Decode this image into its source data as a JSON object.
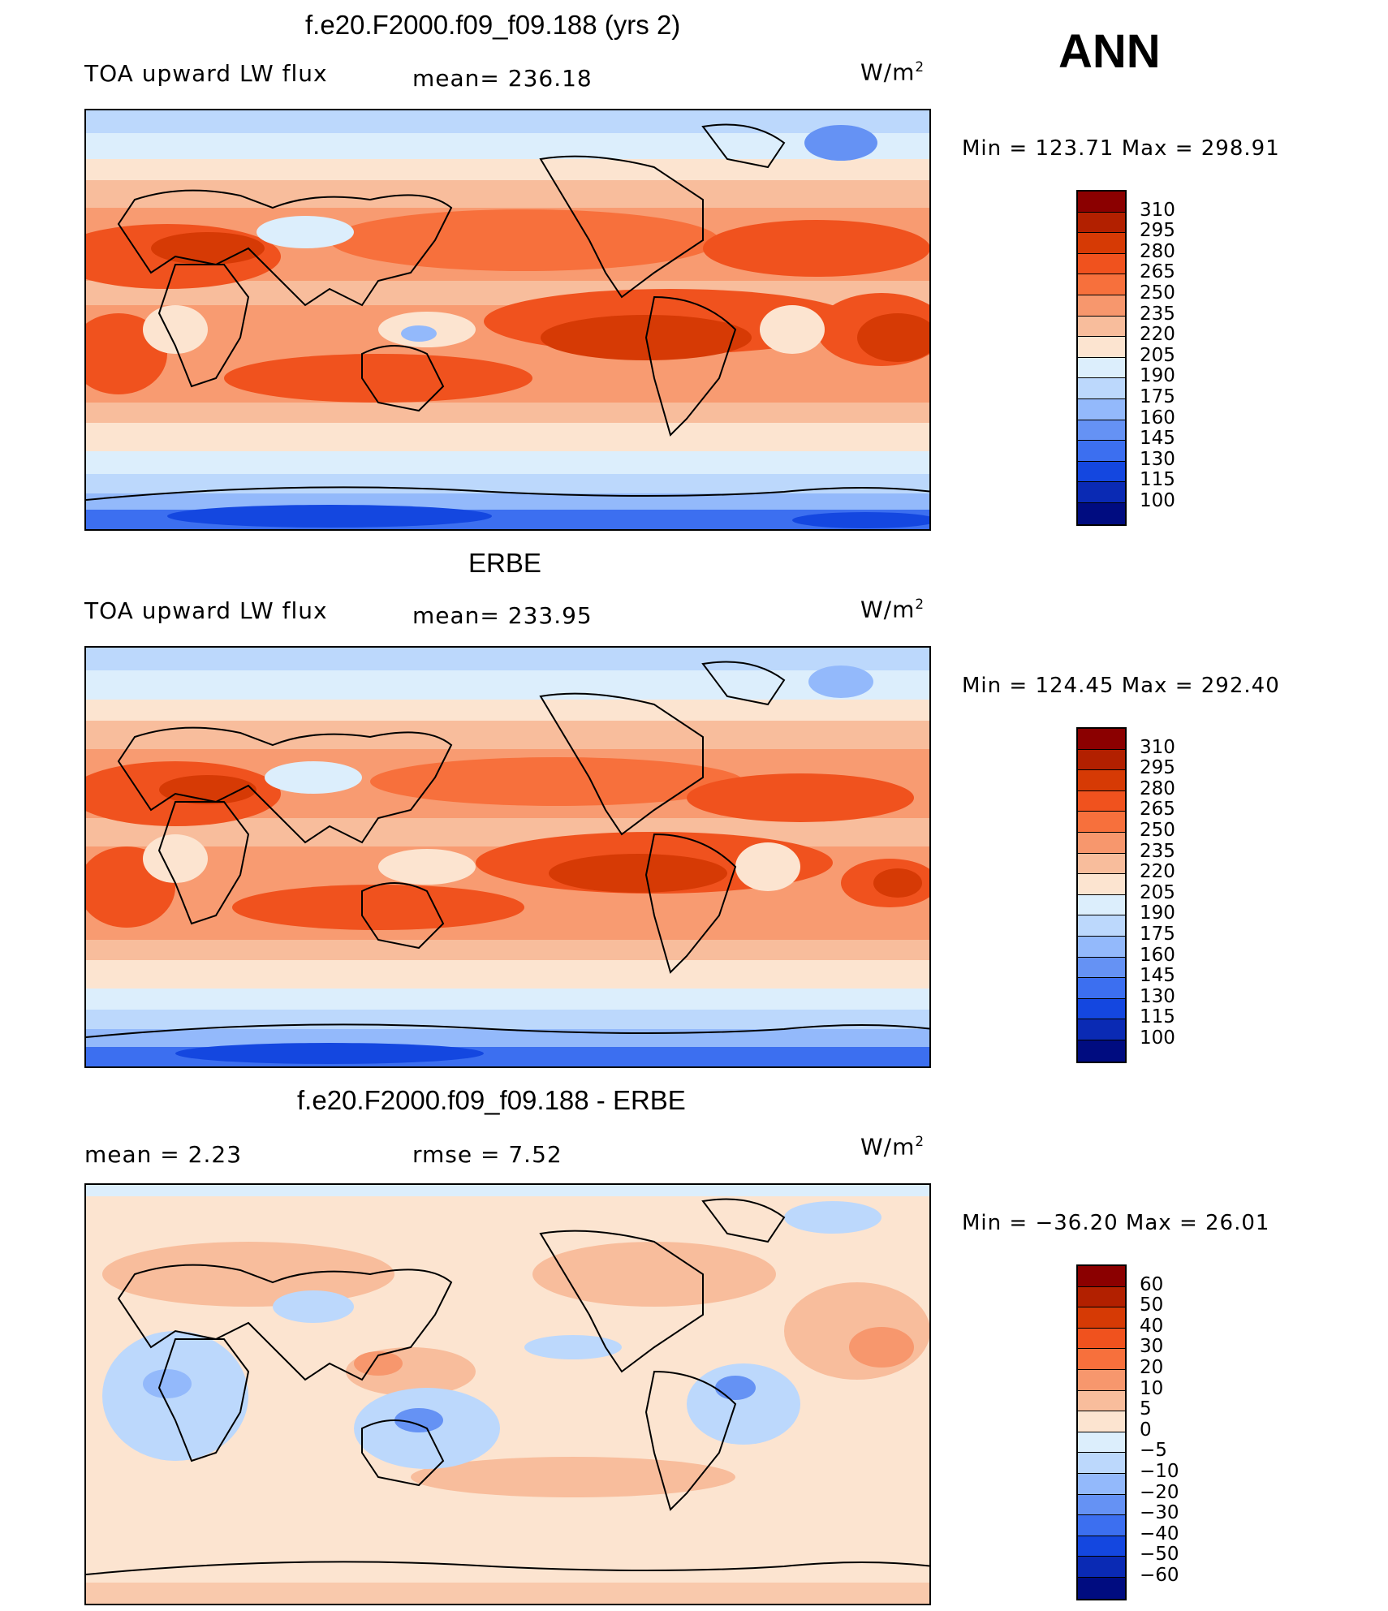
{
  "season": "ANN",
  "units_base": "W/m",
  "units_exp": "2",
  "panels": [
    {
      "id": "model",
      "title": "f.e20.F2000.f09_f09.188 (yrs 2)",
      "left_label": "TOA upward LW flux",
      "mid_label": "mean=  236.18",
      "minmax": "Min  =  123.71  Max  =  298.91",
      "scale": "abs"
    },
    {
      "id": "obs",
      "title": "ERBE",
      "left_label": "TOA upward LW flux",
      "mid_label": "mean=  233.95",
      "minmax": "Min  =  124.45  Max  =  292.40",
      "scale": "abs"
    },
    {
      "id": "diff",
      "title": "f.e20.F2000.f09_f09.188 - ERBE",
      "left_label": "mean  =      2.23",
      "mid_label": "rmse  =      7.52",
      "minmax": "Min  =  −36.20  Max  =    26.01",
      "scale": "diff"
    }
  ],
  "colorbars": {
    "abs": {
      "labels": [
        "310",
        "295",
        "280",
        "265",
        "250",
        "235",
        "220",
        "205",
        "190",
        "175",
        "160",
        "145",
        "130",
        "115",
        "100"
      ],
      "colors": [
        "#8b0000",
        "#b22000",
        "#d63a05",
        "#f0521e",
        "#f7703c",
        "#f7976d",
        "#f8bd9c",
        "#fce4d0",
        "#dceefc",
        "#bcd8fc",
        "#93b9fb",
        "#6592f4",
        "#3c6ff0",
        "#1447e0",
        "#0a2ab4",
        "#000c80"
      ]
    },
    "diff": {
      "labels": [
        "60",
        "50",
        "40",
        "30",
        "20",
        "10",
        "5",
        "0",
        "−5",
        "−10",
        "−20",
        "−30",
        "−40",
        "−50",
        "−60"
      ],
      "colors": [
        "#8b0000",
        "#b22000",
        "#d63a05",
        "#f0521e",
        "#f7703c",
        "#f7976d",
        "#f8bd9c",
        "#fce4d0",
        "#dceefc",
        "#bcd8fc",
        "#93b9fb",
        "#6592f4",
        "#3c6ff0",
        "#1447e0",
        "#0a2ab4",
        "#000c80"
      ]
    }
  }
}
